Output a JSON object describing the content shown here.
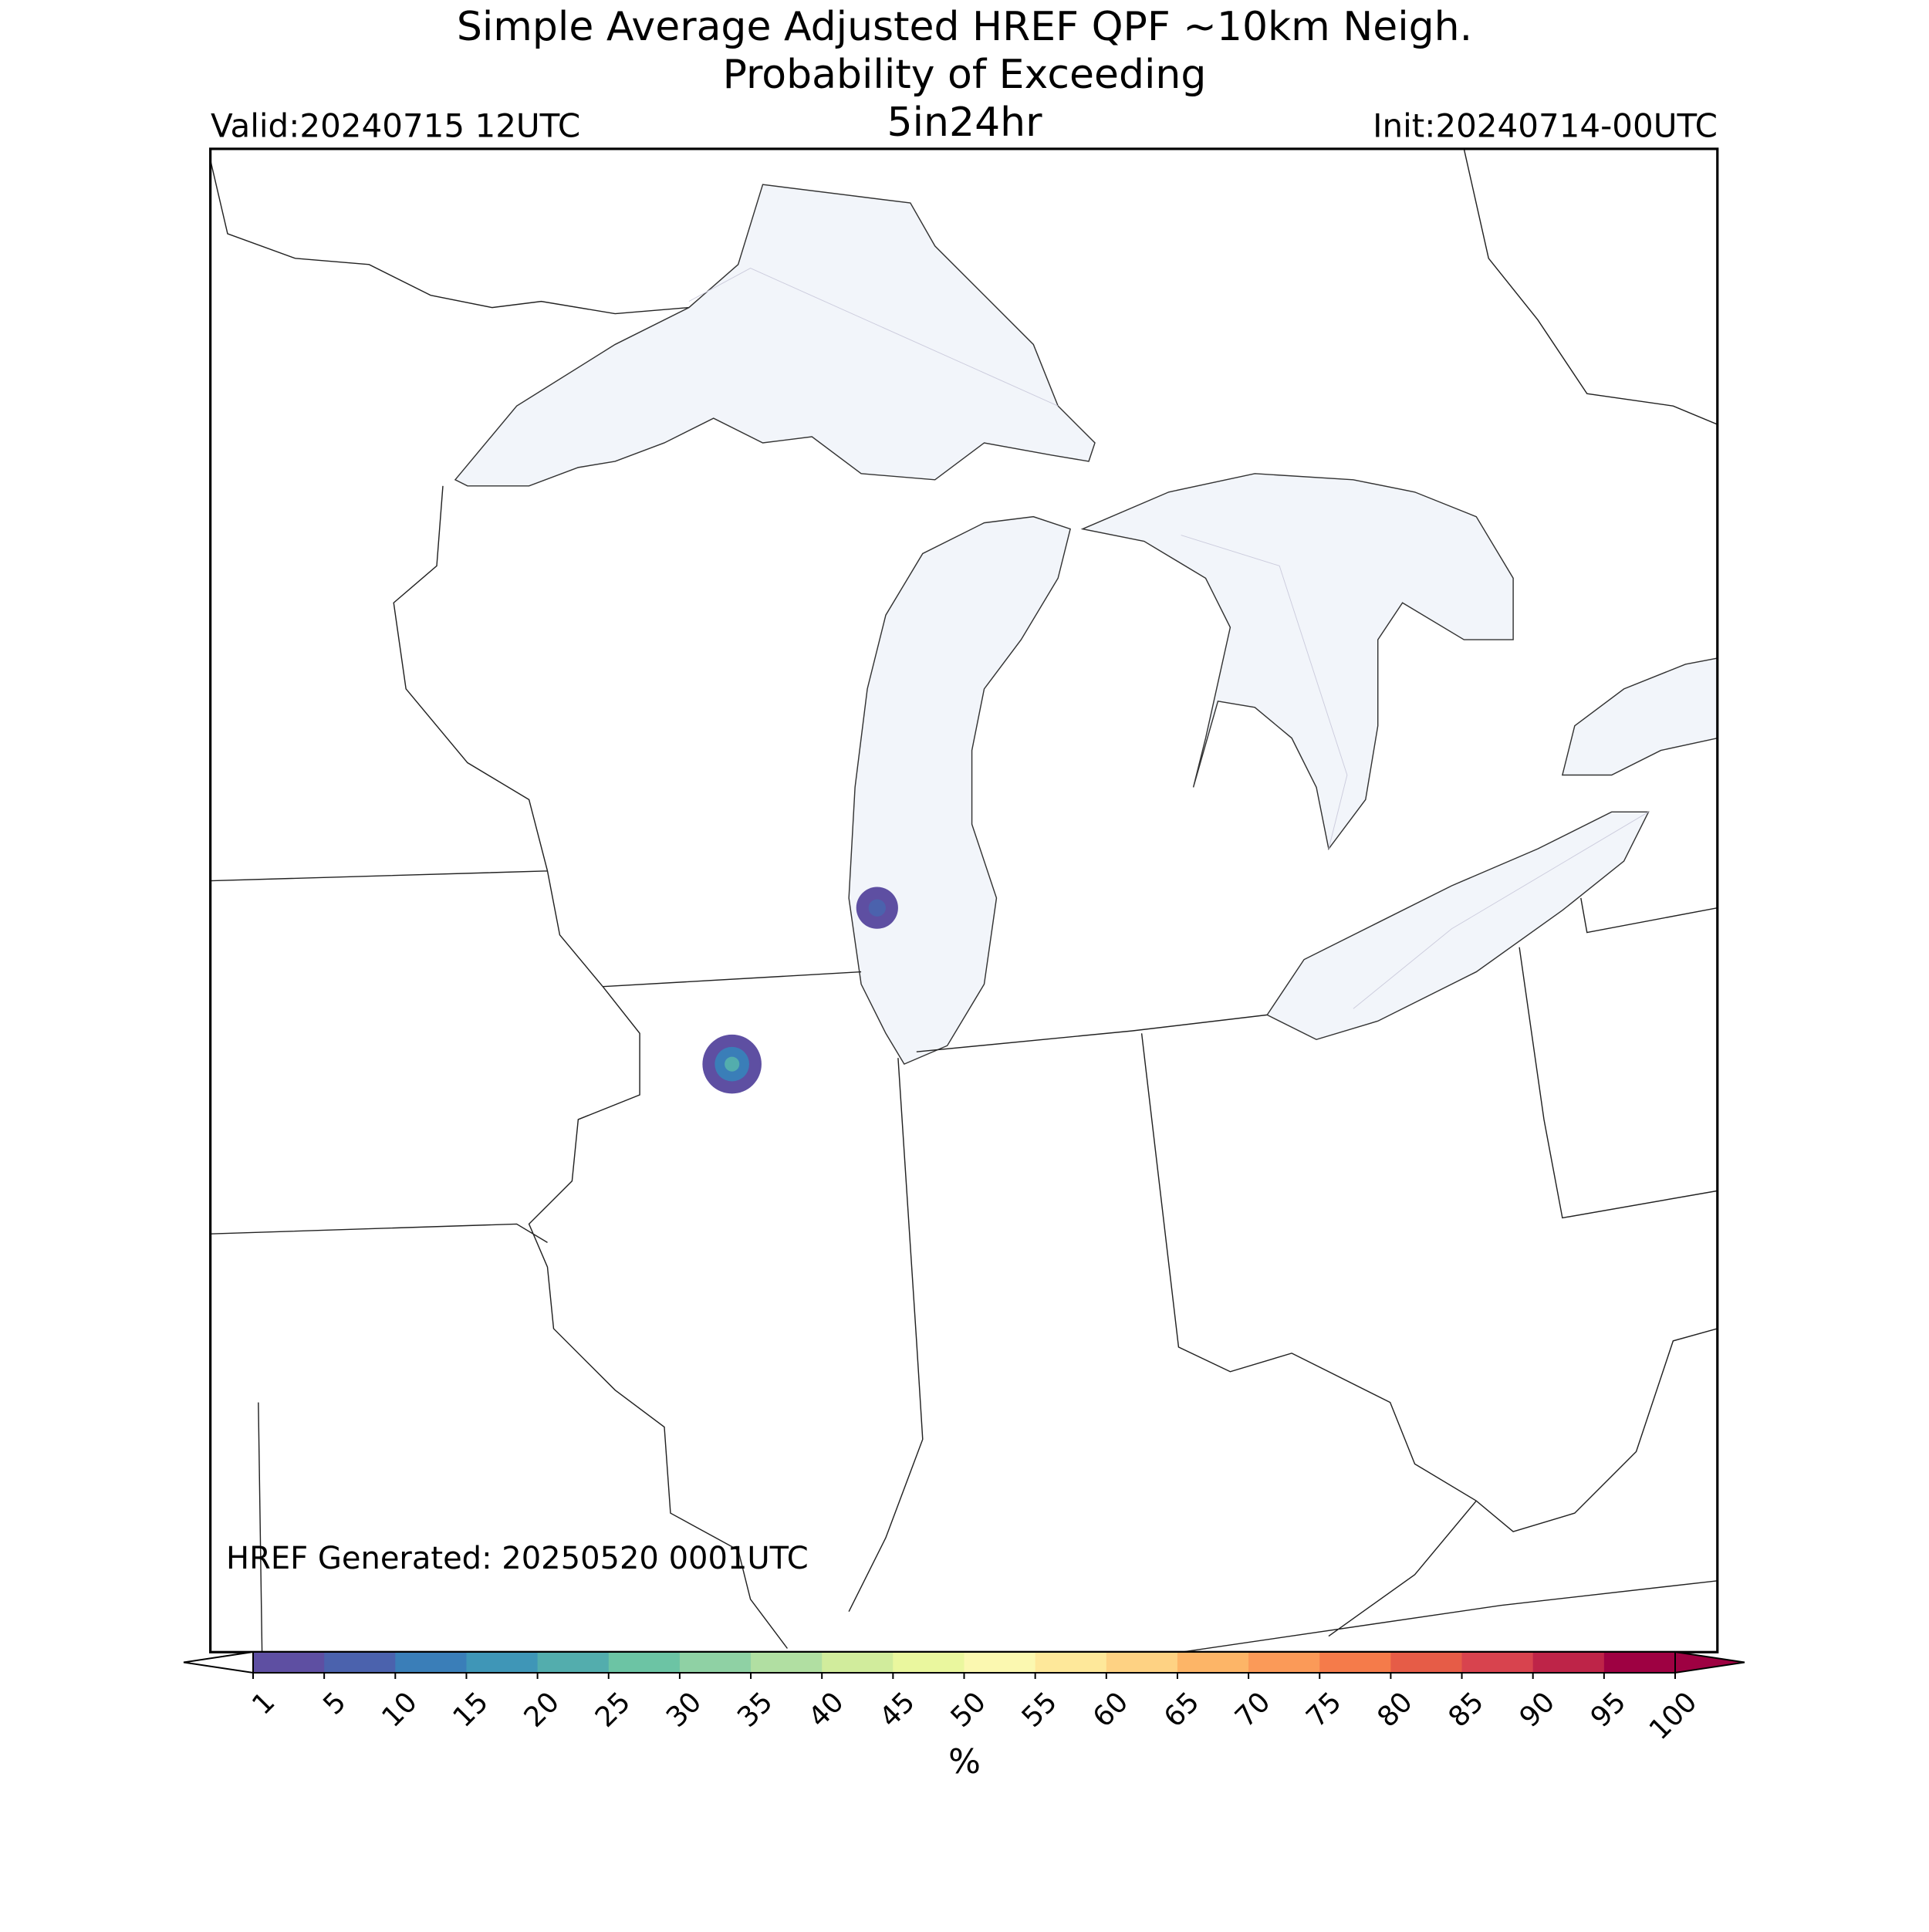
{
  "header": {
    "title": "Simple Average Adjusted HREF QPF ~10km Neigh.",
    "subtitle": "Probability of Exceeding",
    "valid": "Valid:20240715 12UTC",
    "threshold": "5in24hr",
    "init": "Init:20240714-00UTC"
  },
  "map": {
    "footnote": "HREF Generated: 20250520 0001UTC"
  },
  "colorbar": {
    "ticks": [
      1,
      5,
      10,
      15,
      20,
      25,
      30,
      35,
      40,
      45,
      50,
      55,
      60,
      65,
      70,
      75,
      80,
      85,
      90,
      95,
      100
    ],
    "colors": [
      "#5e4fa2",
      "#4b62ad",
      "#3a7eb8",
      "#3f96b7",
      "#53adad",
      "#6cc4a4",
      "#8fd1a4",
      "#b1dfa2",
      "#d1ec9c",
      "#eaf79e",
      "#fbf8b0",
      "#fee89a",
      "#fed283",
      "#fdb567",
      "#fb9a58",
      "#f57b4a",
      "#e65c47",
      "#d8434e",
      "#be2448",
      "#9e0142"
    ],
    "label": "%"
  }
}
